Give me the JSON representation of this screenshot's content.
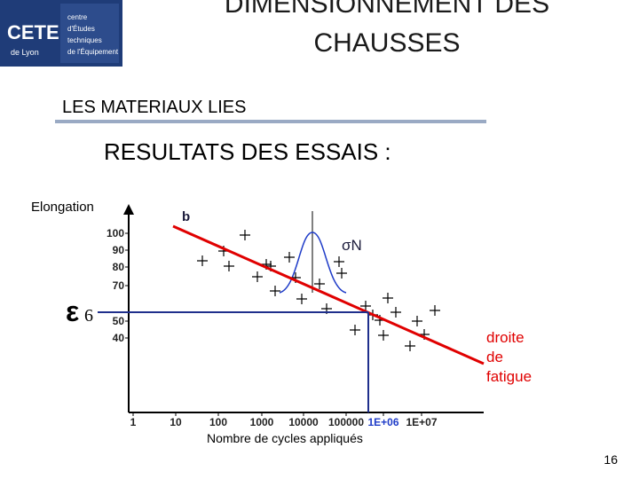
{
  "logo": {
    "name": "CETE",
    "city": "de Lyon",
    "lines": [
      "centre",
      "d'Études",
      "techniques",
      "de l'Équipement"
    ]
  },
  "title": [
    "DIMENSIONNEMENT DES",
    "CHAUSSES"
  ],
  "heading": "LES MATERIAUX LIES",
  "subheading": "RESULTATS DES ESSAIS :",
  "chart": {
    "y_label": "Elongation",
    "x_label": "Nombre de cycles appliqués",
    "yticks": [
      "100",
      "90",
      "80",
      "70",
      "50",
      "40"
    ],
    "xticks": [
      "1",
      "10",
      "100",
      "1000",
      "10000",
      "100000",
      "1E+06",
      "1E+07"
    ],
    "slope_label": "b",
    "sigma_label": "σN",
    "epsilon": "ε",
    "epsilon_index": "6",
    "line_label": [
      "droite",
      "de",
      "fatigue"
    ]
  },
  "page_number": "16"
}
